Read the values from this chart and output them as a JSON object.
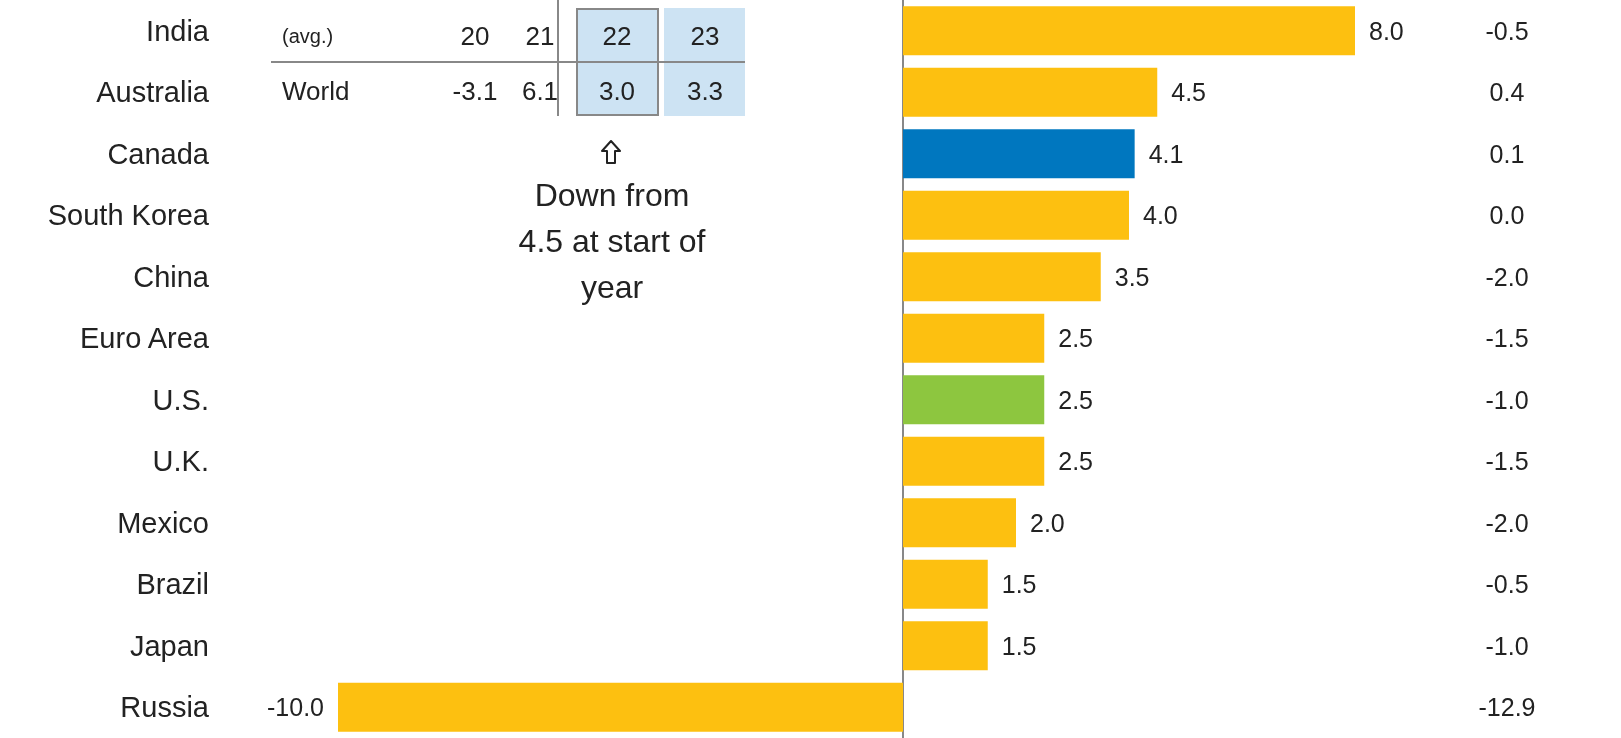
{
  "chart_data": {
    "type": "bar",
    "orientation": "horizontal",
    "categories": [
      "India",
      "Australia",
      "Canada",
      "South Korea",
      "China",
      "Euro Area",
      "U.S.",
      "U.K.",
      "Mexico",
      "Brazil",
      "Japan",
      "Russia"
    ],
    "values": [
      8.0,
      4.5,
      4.1,
      4.0,
      3.5,
      2.5,
      2.5,
      2.5,
      2.0,
      1.5,
      1.5,
      -10.0
    ],
    "value_labels": [
      "8.0",
      "4.5",
      "4.1",
      "4.0",
      "3.5",
      "2.5",
      "2.5",
      "2.5",
      "2.0",
      "1.5",
      "1.5",
      "-10.0"
    ],
    "colors": [
      "#fdc010",
      "#fdc010",
      "#0077bf",
      "#fdc010",
      "#fdc010",
      "#fdc010",
      "#8dc63f",
      "#fdc010",
      "#fdc010",
      "#fdc010",
      "#fdc010",
      "#fdc010"
    ],
    "tick_labels": "y",
    "grid": false,
    "annotations": [
      "(avg.)",
      "20",
      "21",
      "22",
      "23",
      "World",
      "-3.1",
      "6.1",
      "3.0",
      "3.3",
      "Down from 4.5 at start of year",
      "-0.5",
      "0.4",
      "0.1",
      "0.0",
      "-2.0",
      "-1.5",
      "-1.0",
      "-1.5",
      "-2.0",
      "-0.5",
      "-1.0",
      "-12.9"
    ]
  }
}
